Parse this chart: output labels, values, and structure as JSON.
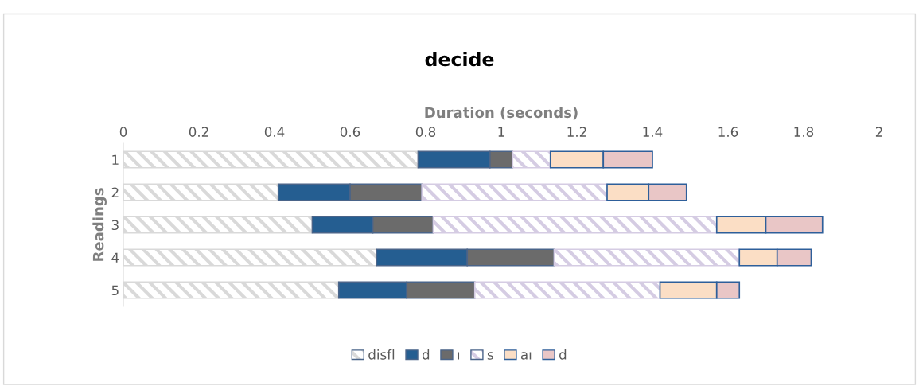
{
  "chart_data": {
    "type": "bar",
    "orientation": "horizontal",
    "stacked": true,
    "title": "decide",
    "xlabel": "Duration (seconds)",
    "ylabel": "Readings",
    "categories": [
      "1",
      "2",
      "3",
      "4",
      "5"
    ],
    "series": [
      {
        "name": "disfl",
        "color": "#d9d9d9",
        "values": [
          0.78,
          0.41,
          0.5,
          0.67,
          0.57
        ]
      },
      {
        "name": "d",
        "color": "#255e91",
        "values": [
          0.19,
          0.19,
          0.16,
          0.24,
          0.18
        ]
      },
      {
        "name": "ı",
        "color": "#6b6b6b",
        "values": [
          0.06,
          0.19,
          0.16,
          0.23,
          0.18
        ]
      },
      {
        "name": "s",
        "color": "#d5cce3",
        "values": [
          0.1,
          0.49,
          0.75,
          0.49,
          0.49
        ]
      },
      {
        "name": "aı",
        "color": "#fbdec5",
        "values": [
          0.14,
          0.11,
          0.13,
          0.1,
          0.15
        ]
      },
      {
        "name": "d",
        "color": "#e9c6c6",
        "values": [
          0.13,
          0.1,
          0.15,
          0.09,
          0.06
        ]
      }
    ],
    "xlim": [
      0,
      2
    ],
    "xticks": [
      0,
      0.2,
      0.4,
      0.6,
      0.8,
      1,
      1.2,
      1.4,
      1.6,
      1.8,
      2
    ],
    "grid": false,
    "legend": "bottom"
  }
}
